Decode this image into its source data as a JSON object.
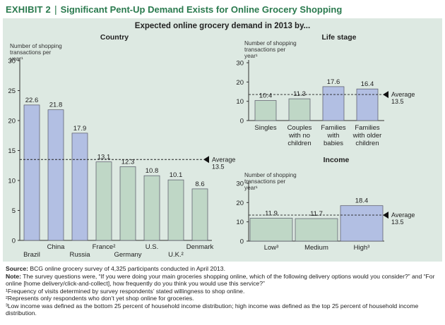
{
  "header": {
    "exhibit": "EXHIBIT 2",
    "separator": "|",
    "title": "Significant Pent-Up Demand Exists for Online Grocery Shopping"
  },
  "figure_title": "Expected online grocery demand in 2013 by...",
  "colors": {
    "header_text": "#2a7a4e",
    "panel_bg": "#dde9e2",
    "bar_blue": "#b2bfe3",
    "bar_green": "#bfd7c6",
    "bar_stroke": "#555566",
    "average_line": "#222222"
  },
  "chart_data": [
    {
      "id": "country",
      "type": "bar",
      "title": "Country",
      "ylabel": "Number of shopping transactions per year¹",
      "ylim": [
        0,
        30
      ],
      "yticks": [
        0,
        5,
        10,
        15,
        20,
        25,
        30
      ],
      "categories": [
        "Brazil",
        "China",
        "Russia",
        "France²",
        "Germany",
        "U.S.",
        "U.K.²",
        "Denmark"
      ],
      "values": [
        22.6,
        21.8,
        17.9,
        13.1,
        12.3,
        10.8,
        10.1,
        8.6
      ],
      "value_labels": [
        "22.6",
        "21.8",
        "17.9",
        "13.1",
        "12.3",
        "10.8",
        "10.1",
        "8.6"
      ],
      "bar_colors": [
        "blue",
        "blue",
        "blue",
        "green",
        "green",
        "green",
        "green",
        "green"
      ],
      "average": 13.5,
      "average_label": [
        "Average",
        "13.5"
      ]
    },
    {
      "id": "life-stage",
      "type": "bar",
      "title": "Life stage",
      "ylabel": "Number of shopping transactions per year¹",
      "ylim": [
        0,
        30
      ],
      "yticks": [
        0,
        10,
        20,
        30
      ],
      "categories": [
        [
          "Singles"
        ],
        [
          "Couples",
          "with no",
          "children"
        ],
        [
          "Families",
          "with",
          "babies"
        ],
        [
          "Families",
          "with older",
          "children"
        ]
      ],
      "values": [
        10.4,
        11.3,
        17.6,
        16.4
      ],
      "value_labels": [
        "10.4",
        "11.3",
        "17.6",
        "16.4"
      ],
      "bar_colors": [
        "green",
        "green",
        "blue",
        "blue"
      ],
      "average": 13.5,
      "average_label": [
        "Average",
        "13.5"
      ]
    },
    {
      "id": "income",
      "type": "bar",
      "title": "Income",
      "ylabel": "Number of shopping transactions per year¹",
      "ylim": [
        0,
        30
      ],
      "yticks": [
        0,
        10,
        20,
        30
      ],
      "categories": [
        "Low³",
        "Medium",
        "High³"
      ],
      "values": [
        11.9,
        11.7,
        18.4
      ],
      "value_labels": [
        "11.9",
        "11.7",
        "18.4"
      ],
      "bar_colors": [
        "green",
        "green",
        "blue"
      ],
      "average": 13.5,
      "average_label": [
        "Average",
        "13.5"
      ]
    }
  ],
  "notes": {
    "source_label": "Source:",
    "source": " BCG online grocery survey of 4,325 participants conducted in April 2013.",
    "note_label": "Note:",
    "note": " The survey questions were, “If you were doing your main groceries shopping online, which of the following delivery options would you consider?” and “For online [home delivery/click-and-collect], how frequently do you think you would use this service?”",
    "footnote1": "¹Frequency of visits determined by survey respondents’ stated willingness to shop online.",
    "footnote2": "²Represents only respondents who don’t yet shop online for groceries.",
    "footnote3": "³Low income was defined as the bottom 25 percent of household income distribution; high income was defined as the top 25 percent of household income distribution."
  }
}
